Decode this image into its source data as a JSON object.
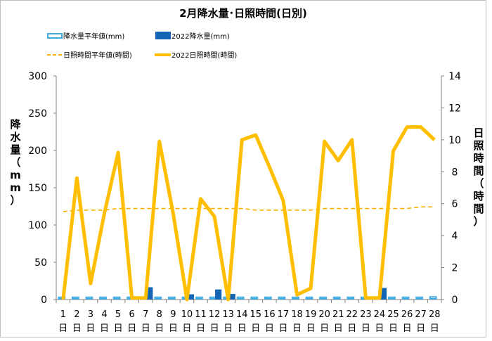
{
  "chart_data": {
    "type": "bar",
    "title": "2月降水量･日照時間(日別)",
    "categories": [
      "1",
      "2",
      "3",
      "4",
      "5",
      "6",
      "7",
      "8",
      "9",
      "10",
      "11",
      "12",
      "13",
      "14",
      "15",
      "16",
      "17",
      "18",
      "19",
      "20",
      "21",
      "22",
      "23",
      "24",
      "25",
      "26",
      "27",
      "28"
    ],
    "category_suffix": "日",
    "y_left": {
      "label": "降水量（mm）",
      "lim": [
        0,
        300
      ],
      "ticks": [
        0,
        50,
        100,
        150,
        200,
        250,
        300
      ]
    },
    "y_right": {
      "label": "日照時間（時間）",
      "lim": [
        0,
        14
      ],
      "ticks": [
        0,
        2,
        4,
        6,
        8,
        10,
        12,
        14
      ]
    },
    "grid": false,
    "legend": {
      "position": "top",
      "entries": [
        "降水量平年値(mm)",
        "2022降水量(mm)",
        "日照時間平年値(時間)",
        "2022日照時間(時間)"
      ]
    },
    "colors": {
      "precip_normal": "#3fa9e0",
      "precip_2022": "#1565b5",
      "sunshine_normal": "#f7b000",
      "sunshine_2022": "#ffbf00",
      "axis": "#808080"
    },
    "series": [
      {
        "name": "降水量平年値(mm)",
        "type": "bar",
        "axis": "left",
        "values": [
          3,
          3,
          3,
          3,
          3,
          3,
          3,
          3,
          3,
          3,
          3,
          3,
          3,
          3,
          3,
          3,
          3,
          3,
          3,
          3,
          3,
          3,
          3,
          3,
          3,
          3,
          3,
          3.5
        ]
      },
      {
        "name": "2022降水量(mm)",
        "type": "bar",
        "axis": "left",
        "values": [
          0,
          0,
          0,
          0,
          0,
          0,
          16.5,
          0,
          0,
          7,
          0,
          13.5,
          7.5,
          0,
          0,
          0,
          0,
          0,
          0,
          0,
          0,
          0,
          0,
          15.5,
          0,
          0,
          0,
          0
        ]
      },
      {
        "name": "日照時間平年値(時間)",
        "type": "line",
        "style": "dashed",
        "axis": "right",
        "values": [
          5.5,
          5.6,
          5.6,
          5.6,
          5.7,
          5.7,
          5.7,
          5.7,
          5.7,
          5.7,
          5.7,
          5.7,
          5.7,
          5.7,
          5.6,
          5.6,
          5.6,
          5.6,
          5.6,
          5.7,
          5.7,
          5.7,
          5.7,
          5.7,
          5.7,
          5.7,
          5.8,
          5.8
        ]
      },
      {
        "name": "2022日照時間(時間)",
        "type": "line",
        "axis": "right",
        "values": [
          0.0,
          7.6,
          1.0,
          5.4,
          9.2,
          0.1,
          0.1,
          9.9,
          5.4,
          0.0,
          6.3,
          5.2,
          0.0,
          10.0,
          10.3,
          8.3,
          6.2,
          0.3,
          0.7,
          9.9,
          8.7,
          10.0,
          0.1,
          0.1,
          9.3,
          10.8,
          10.8,
          10.0
        ]
      }
    ]
  }
}
